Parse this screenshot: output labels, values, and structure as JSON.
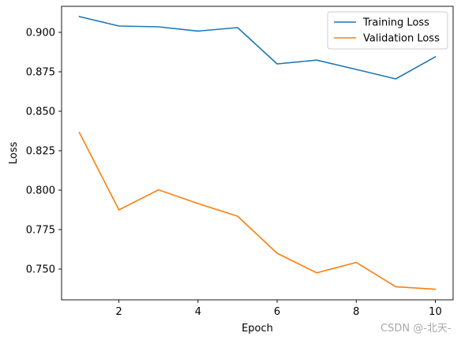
{
  "chart_data": {
    "type": "line",
    "title": "",
    "xlabel": "Epoch",
    "ylabel": "Loss",
    "xlim": [
      0.55,
      10.45
    ],
    "ylim": [
      0.7305,
      0.9165
    ],
    "xticks": [
      2,
      4,
      6,
      8,
      10
    ],
    "yticks": [
      0.75,
      0.775,
      0.8,
      0.825,
      0.85,
      0.875,
      0.9
    ],
    "ytick_labels": [
      "0.750",
      "0.775",
      "0.800",
      "0.825",
      "0.850",
      "0.875",
      "0.900"
    ],
    "grid": false,
    "legend_position": "upper-right",
    "x": [
      1,
      2,
      3,
      4,
      5,
      6,
      7,
      8,
      9,
      10
    ],
    "series": [
      {
        "name": "Training Loss",
        "color": "#1f77b4",
        "values": [
          0.91,
          0.904,
          0.9035,
          0.9008,
          0.903,
          0.88,
          0.8824,
          0.8765,
          0.8705,
          0.8845
        ]
      },
      {
        "name": "Validation Loss",
        "color": "#ff7f0e",
        "values": [
          0.8365,
          0.7875,
          0.8002,
          0.7915,
          0.7835,
          0.76,
          0.7476,
          0.7542,
          0.7388,
          0.7372
        ]
      }
    ]
  },
  "watermark": "CSDN @-北天-"
}
